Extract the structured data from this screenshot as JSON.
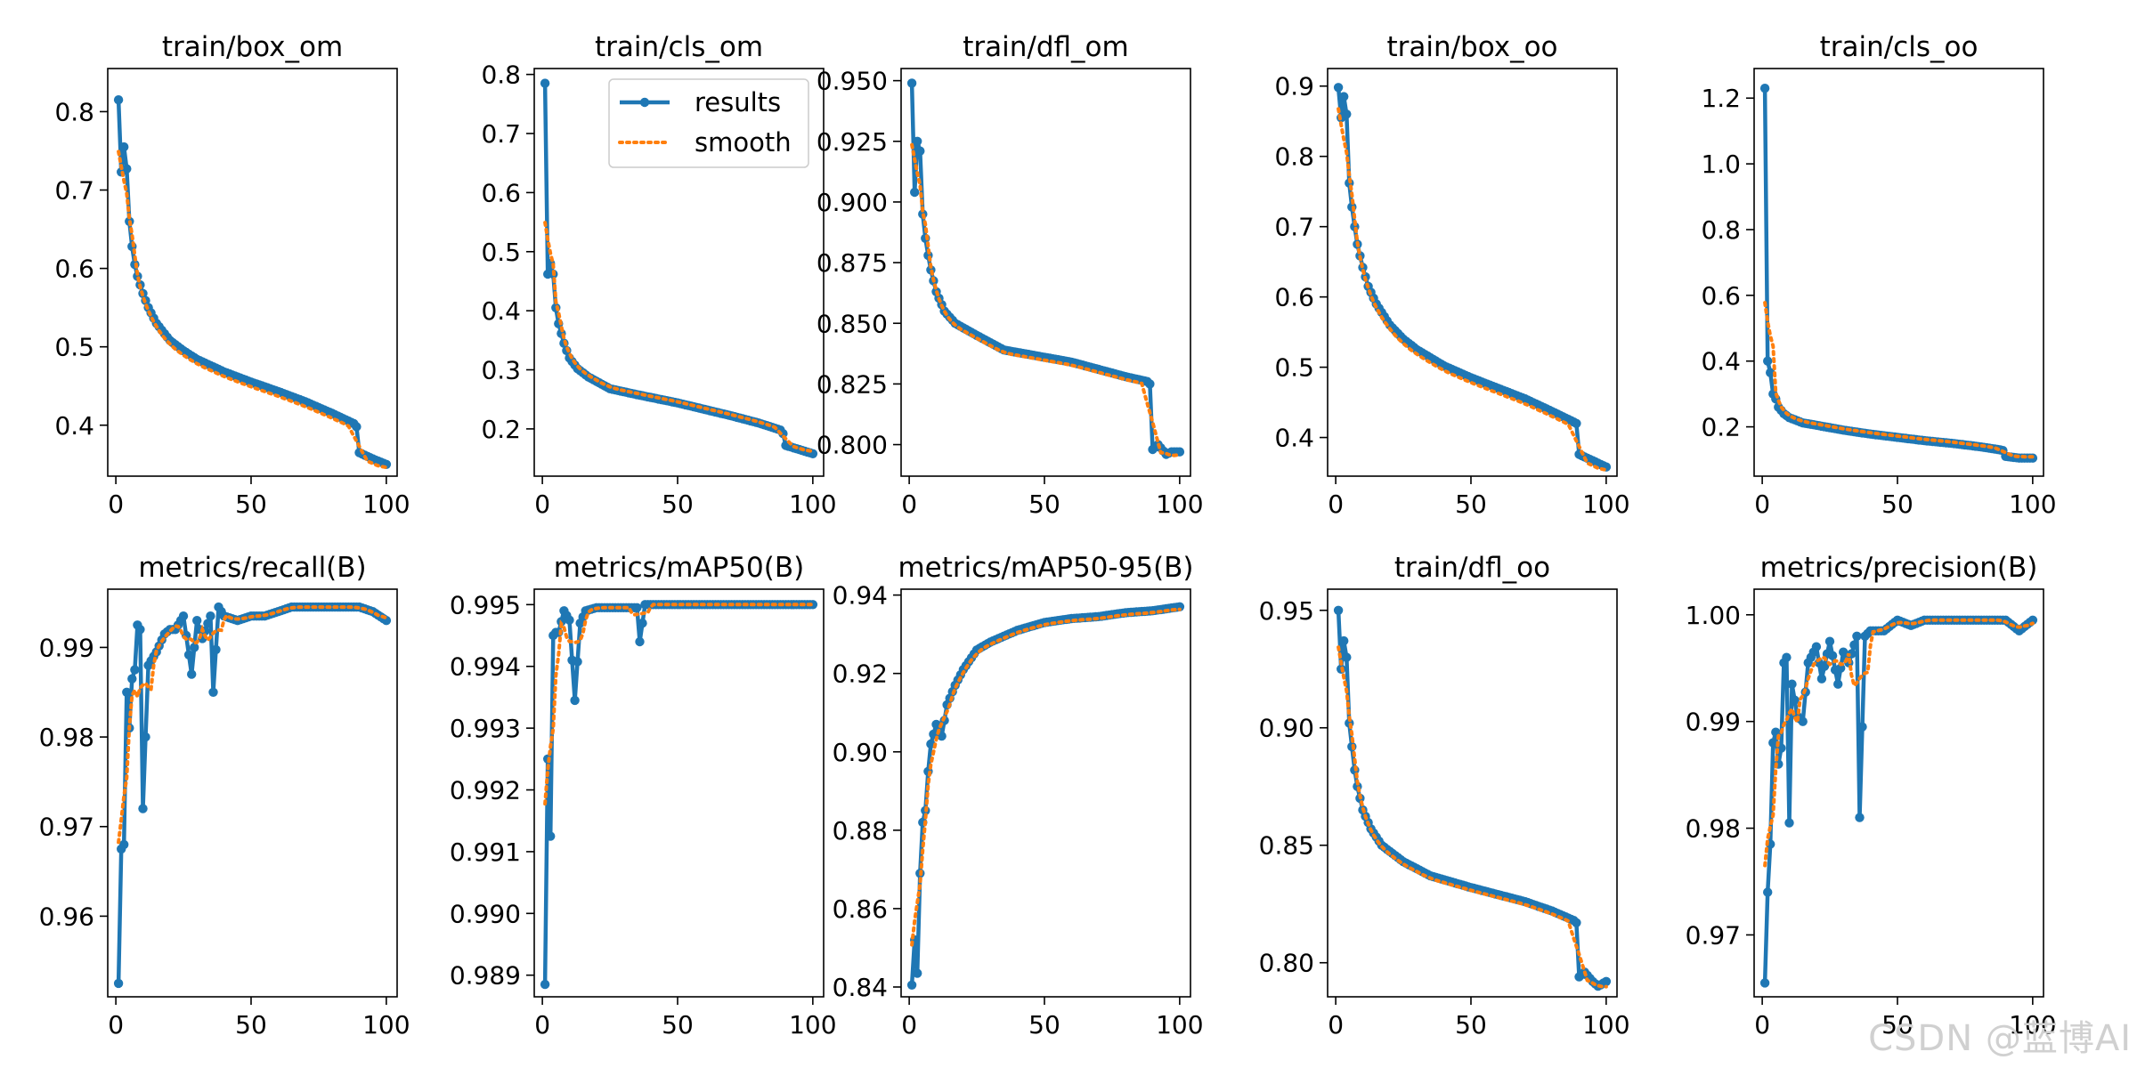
{
  "colors": {
    "results": "#1f77b4",
    "smooth": "#ff7f0e",
    "axis": "#000000"
  },
  "legend": {
    "results_label": "results",
    "smooth_label": "smooth",
    "placement": "top-right of train/cls_om"
  },
  "watermark": "CSDN @蓝博AI",
  "chart_data": [
    {
      "type": "line",
      "title": "train/box_om",
      "xlim": [
        -3,
        104
      ],
      "ylim": [
        0.335,
        0.855
      ],
      "xticks": [
        0,
        50,
        100
      ],
      "yticks": [
        0.4,
        0.5,
        0.6,
        0.7,
        0.8
      ],
      "ydecimals": 1,
      "anchors": [
        [
          1,
          0.815
        ],
        [
          2,
          0.723
        ],
        [
          3,
          0.755
        ],
        [
          4,
          0.727
        ],
        [
          5,
          0.66
        ],
        [
          6,
          0.628
        ],
        [
          7,
          0.605
        ],
        [
          8,
          0.59
        ],
        [
          10,
          0.568
        ],
        [
          12,
          0.55
        ],
        [
          15,
          0.53
        ],
        [
          20,
          0.508
        ],
        [
          25,
          0.495
        ],
        [
          30,
          0.484
        ],
        [
          40,
          0.468
        ],
        [
          50,
          0.455
        ],
        [
          60,
          0.443
        ],
        [
          70,
          0.43
        ],
        [
          80,
          0.415
        ],
        [
          88,
          0.402
        ],
        [
          89,
          0.398
        ],
        [
          90,
          0.365
        ],
        [
          95,
          0.357
        ],
        [
          100,
          0.35
        ]
      ],
      "smooth_offset": -0.006
    },
    {
      "type": "line",
      "title": "train/cls_om",
      "xlim": [
        -3,
        104
      ],
      "ylim": [
        0.12,
        0.81
      ],
      "xticks": [
        0,
        50,
        100
      ],
      "yticks": [
        0.2,
        0.3,
        0.4,
        0.5,
        0.6,
        0.7,
        0.8
      ],
      "ydecimals": 1,
      "anchors": [
        [
          1,
          0.785
        ],
        [
          2,
          0.462
        ],
        [
          3,
          0.48
        ],
        [
          4,
          0.462
        ],
        [
          5,
          0.405
        ],
        [
          6,
          0.378
        ],
        [
          8,
          0.345
        ],
        [
          10,
          0.32
        ],
        [
          13,
          0.302
        ],
        [
          17,
          0.288
        ],
        [
          25,
          0.268
        ],
        [
          35,
          0.258
        ],
        [
          50,
          0.244
        ],
        [
          60,
          0.233
        ],
        [
          70,
          0.222
        ],
        [
          80,
          0.21
        ],
        [
          88,
          0.198
        ],
        [
          89,
          0.192
        ],
        [
          90,
          0.172
        ],
        [
          95,
          0.165
        ],
        [
          100,
          0.158
        ]
      ],
      "smooth_offset": 0.002
    },
    {
      "type": "line",
      "title": "train/dfl_om",
      "xlim": [
        -3,
        104
      ],
      "ylim": [
        0.787,
        0.955
      ],
      "xticks": [
        0,
        50,
        100
      ],
      "yticks": [
        0.8,
        0.825,
        0.85,
        0.875,
        0.9,
        0.925,
        0.95
      ],
      "ydecimals": 3,
      "anchors": [
        [
          1,
          0.949
        ],
        [
          2,
          0.904
        ],
        [
          3,
          0.925
        ],
        [
          4,
          0.921
        ],
        [
          5,
          0.895
        ],
        [
          6,
          0.885
        ],
        [
          7,
          0.878
        ],
        [
          8,
          0.872
        ],
        [
          10,
          0.863
        ],
        [
          13,
          0.855
        ],
        [
          17,
          0.85
        ],
        [
          25,
          0.845
        ],
        [
          35,
          0.839
        ],
        [
          50,
          0.836
        ],
        [
          60,
          0.834
        ],
        [
          70,
          0.831
        ],
        [
          80,
          0.828
        ],
        [
          88,
          0.826
        ],
        [
          89,
          0.825
        ],
        [
          90,
          0.798
        ],
        [
          92,
          0.8
        ],
        [
          95,
          0.796
        ],
        [
          97,
          0.797
        ],
        [
          100,
          0.797
        ]
      ],
      "smooth_offset": -0.0012
    },
    {
      "type": "line",
      "title": "train/box_oo",
      "xlim": [
        -3,
        104
      ],
      "ylim": [
        0.345,
        0.925
      ],
      "xticks": [
        0,
        50,
        100
      ],
      "yticks": [
        0.4,
        0.5,
        0.6,
        0.7,
        0.8,
        0.9
      ],
      "ydecimals": 1,
      "anchors": [
        [
          1,
          0.898
        ],
        [
          2,
          0.855
        ],
        [
          3,
          0.885
        ],
        [
          4,
          0.86
        ],
        [
          5,
          0.762
        ],
        [
          6,
          0.728
        ],
        [
          7,
          0.7
        ],
        [
          8,
          0.675
        ],
        [
          10,
          0.642
        ],
        [
          12,
          0.615
        ],
        [
          15,
          0.59
        ],
        [
          20,
          0.56
        ],
        [
          25,
          0.54
        ],
        [
          30,
          0.525
        ],
        [
          40,
          0.502
        ],
        [
          50,
          0.485
        ],
        [
          60,
          0.47
        ],
        [
          70,
          0.455
        ],
        [
          80,
          0.437
        ],
        [
          88,
          0.422
        ],
        [
          89,
          0.42
        ],
        [
          90,
          0.376
        ],
        [
          95,
          0.367
        ],
        [
          100,
          0.358
        ]
      ],
      "smooth_offset": -0.007
    },
    {
      "type": "line",
      "title": "train/cls_oo",
      "xlim": [
        -3,
        104
      ],
      "ylim": [
        0.05,
        1.29
      ],
      "xticks": [
        0,
        50,
        100
      ],
      "yticks": [
        0.2,
        0.4,
        0.6,
        0.8,
        1.0,
        1.2
      ],
      "ydecimals": 1,
      "anchors": [
        [
          1,
          1.23
        ],
        [
          2,
          0.4
        ],
        [
          3,
          0.365
        ],
        [
          4,
          0.3
        ],
        [
          5,
          0.285
        ],
        [
          6,
          0.26
        ],
        [
          8,
          0.24
        ],
        [
          10,
          0.228
        ],
        [
          15,
          0.212
        ],
        [
          20,
          0.205
        ],
        [
          30,
          0.19
        ],
        [
          40,
          0.178
        ],
        [
          50,
          0.168
        ],
        [
          60,
          0.158
        ],
        [
          70,
          0.15
        ],
        [
          80,
          0.14
        ],
        [
          88,
          0.13
        ],
        [
          89,
          0.128
        ],
        [
          90,
          0.11
        ],
        [
          95,
          0.105
        ],
        [
          100,
          0.105
        ]
      ],
      "smooth_offset": 0.004
    },
    {
      "type": "line",
      "title": "metrics/recall(B)",
      "xlim": [
        -3,
        104
      ],
      "ylim": [
        0.951,
        0.9965
      ],
      "xticks": [
        0,
        50,
        100
      ],
      "yticks": [
        0.96,
        0.97,
        0.98,
        0.99
      ],
      "ydecimals": 2,
      "anchors": [
        [
          1,
          0.9525
        ],
        [
          2,
          0.9675
        ],
        [
          3,
          0.968
        ],
        [
          4,
          0.985
        ],
        [
          5,
          0.981
        ],
        [
          6,
          0.9865
        ],
        [
          7,
          0.9875
        ],
        [
          8,
          0.9925
        ],
        [
          9,
          0.992
        ],
        [
          10,
          0.972
        ],
        [
          12,
          0.988
        ],
        [
          15,
          0.9895
        ],
        [
          18,
          0.9915
        ],
        [
          20,
          0.992
        ],
        [
          22,
          0.992
        ],
        [
          25,
          0.9935
        ],
        [
          28,
          0.987
        ],
        [
          30,
          0.993
        ],
        [
          32,
          0.991
        ],
        [
          35,
          0.9935
        ],
        [
          36,
          0.985
        ],
        [
          38,
          0.9945
        ],
        [
          40,
          0.9935
        ],
        [
          45,
          0.993
        ],
        [
          50,
          0.9935
        ],
        [
          55,
          0.9935
        ],
        [
          60,
          0.994
        ],
        [
          65,
          0.9945
        ],
        [
          70,
          0.9945
        ],
        [
          80,
          0.9945
        ],
        [
          85,
          0.9945
        ],
        [
          90,
          0.9945
        ],
        [
          95,
          0.994
        ],
        [
          100,
          0.993
        ]
      ],
      "smooth_offset": 0
    },
    {
      "type": "line",
      "title": "metrics/mAP50(B)",
      "xlim": [
        -3,
        104
      ],
      "ylim": [
        0.98865,
        0.99525
      ],
      "xticks": [
        0,
        50,
        100
      ],
      "yticks": [
        0.989,
        0.99,
        0.991,
        0.992,
        0.993,
        0.994,
        0.995
      ],
      "ydecimals": 3,
      "anchors": [
        [
          1,
          0.98885
        ],
        [
          2,
          0.9925
        ],
        [
          3,
          0.99125
        ],
        [
          4,
          0.9945
        ],
        [
          5,
          0.99455
        ],
        [
          6,
          0.99455
        ],
        [
          8,
          0.9949
        ],
        [
          10,
          0.99475
        ],
        [
          12,
          0.99345
        ],
        [
          14,
          0.9947
        ],
        [
          16,
          0.9949
        ],
        [
          20,
          0.99495
        ],
        [
          30,
          0.99495
        ],
        [
          35,
          0.99495
        ],
        [
          36,
          0.9944
        ],
        [
          38,
          0.995
        ],
        [
          50,
          0.995
        ],
        [
          70,
          0.995
        ],
        [
          100,
          0.995
        ]
      ],
      "smooth_offset": 0
    },
    {
      "type": "line",
      "title": "metrics/mAP50-95(B)",
      "xlim": [
        -3,
        104
      ],
      "ylim": [
        0.8375,
        0.9415
      ],
      "xticks": [
        0,
        50,
        100
      ],
      "yticks": [
        0.84,
        0.86,
        0.88,
        0.9,
        0.92,
        0.94
      ],
      "ydecimals": 2,
      "anchors": [
        [
          1,
          0.8405
        ],
        [
          2,
          0.852
        ],
        [
          3,
          0.8435
        ],
        [
          4,
          0.869
        ],
        [
          5,
          0.882
        ],
        [
          6,
          0.885
        ],
        [
          7,
          0.895
        ],
        [
          8,
          0.902
        ],
        [
          10,
          0.907
        ],
        [
          12,
          0.904
        ],
        [
          14,
          0.912
        ],
        [
          17,
          0.917
        ],
        [
          20,
          0.921
        ],
        [
          25,
          0.926
        ],
        [
          30,
          0.928
        ],
        [
          40,
          0.931
        ],
        [
          50,
          0.933
        ],
        [
          60,
          0.934
        ],
        [
          70,
          0.9345
        ],
        [
          80,
          0.9355
        ],
        [
          90,
          0.936
        ],
        [
          100,
          0.937
        ]
      ],
      "smooth_offset": -0.0005
    },
    {
      "type": "line",
      "title": "train/dfl_oo",
      "xlim": [
        -3,
        104
      ],
      "ylim": [
        0.7855,
        0.959
      ],
      "xticks": [
        0,
        50,
        100
      ],
      "yticks": [
        0.8,
        0.85,
        0.9,
        0.95
      ],
      "ydecimals": 2,
      "anchors": [
        [
          1,
          0.95
        ],
        [
          2,
          0.925
        ],
        [
          3,
          0.937
        ],
        [
          4,
          0.93
        ],
        [
          5,
          0.902
        ],
        [
          6,
          0.892
        ],
        [
          7,
          0.882
        ],
        [
          8,
          0.875
        ],
        [
          10,
          0.865
        ],
        [
          13,
          0.857
        ],
        [
          17,
          0.85
        ],
        [
          25,
          0.843
        ],
        [
          35,
          0.837
        ],
        [
          50,
          0.832
        ],
        [
          60,
          0.829
        ],
        [
          70,
          0.826
        ],
        [
          80,
          0.822
        ],
        [
          88,
          0.818
        ],
        [
          89,
          0.817
        ],
        [
          90,
          0.794
        ],
        [
          92,
          0.796
        ],
        [
          95,
          0.792
        ],
        [
          97,
          0.79
        ],
        [
          100,
          0.792
        ]
      ],
      "smooth_offset": -0.0012
    },
    {
      "type": "line",
      "title": "metrics/precision(B)",
      "xlim": [
        -3,
        104
      ],
      "ylim": [
        0.9642,
        1.0024
      ],
      "xticks": [
        0,
        50,
        100
      ],
      "yticks": [
        0.97,
        0.98,
        0.99,
        1.0
      ],
      "ydecimals": 2,
      "anchors": [
        [
          1,
          0.9655
        ],
        [
          2,
          0.974
        ],
        [
          3,
          0.9785
        ],
        [
          4,
          0.988
        ],
        [
          5,
          0.989
        ],
        [
          6,
          0.986
        ],
        [
          7,
          0.9875
        ],
        [
          8,
          0.9955
        ],
        [
          9,
          0.996
        ],
        [
          10,
          0.9805
        ],
        [
          11,
          0.9935
        ],
        [
          12,
          0.992
        ],
        [
          13,
          0.9905
        ],
        [
          15,
          0.99
        ],
        [
          17,
          0.9955
        ],
        [
          20,
          0.997
        ],
        [
          22,
          0.994
        ],
        [
          25,
          0.9975
        ],
        [
          28,
          0.9935
        ],
        [
          30,
          0.9965
        ],
        [
          32,
          0.9955
        ],
        [
          35,
          0.998
        ],
        [
          36,
          0.981
        ],
        [
          38,
          0.998
        ],
        [
          40,
          0.9985
        ],
        [
          45,
          0.9985
        ],
        [
          50,
          0.9995
        ],
        [
          55,
          0.999
        ],
        [
          60,
          0.9995
        ],
        [
          70,
          0.9995
        ],
        [
          80,
          0.9995
        ],
        [
          90,
          0.9995
        ],
        [
          95,
          0.9985
        ],
        [
          100,
          0.9995
        ]
      ],
      "smooth_offset": 0
    }
  ]
}
